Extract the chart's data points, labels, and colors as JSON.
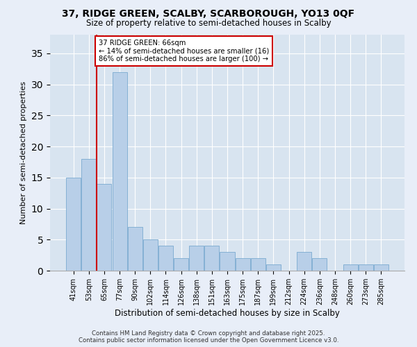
{
  "title": "37, RIDGE GREEN, SCALBY, SCARBOROUGH, YO13 0QF",
  "subtitle": "Size of property relative to semi-detached houses in Scalby",
  "xlabel": "Distribution of semi-detached houses by size in Scalby",
  "ylabel": "Number of semi-detached properties",
  "categories": [
    "41sqm",
    "53sqm",
    "65sqm",
    "77sqm",
    "90sqm",
    "102sqm",
    "114sqm",
    "126sqm",
    "138sqm",
    "151sqm",
    "163sqm",
    "175sqm",
    "187sqm",
    "199sqm",
    "212sqm",
    "224sqm",
    "236sqm",
    "248sqm",
    "260sqm",
    "273sqm",
    "285sqm"
  ],
  "values": [
    15,
    18,
    14,
    32,
    7,
    5,
    4,
    2,
    4,
    4,
    3,
    2,
    2,
    1,
    0,
    3,
    2,
    0,
    1,
    1,
    1
  ],
  "bar_color": "#b8cfe8",
  "bar_edge_color": "#7aaad0",
  "highlight_line_color": "#cc0000",
  "highlight_box_text": "37 RIDGE GREEN: 66sqm\n← 14% of semi-detached houses are smaller (16)\n86% of semi-detached houses are larger (100) →",
  "ylim": [
    0,
    38
  ],
  "yticks": [
    0,
    5,
    10,
    15,
    20,
    25,
    30,
    35
  ],
  "footer": "Contains HM Land Registry data © Crown copyright and database right 2025.\nContains public sector information licensed under the Open Government Licence v3.0.",
  "bg_color": "#e8eef8",
  "plot_bg_color": "#d8e4f0"
}
